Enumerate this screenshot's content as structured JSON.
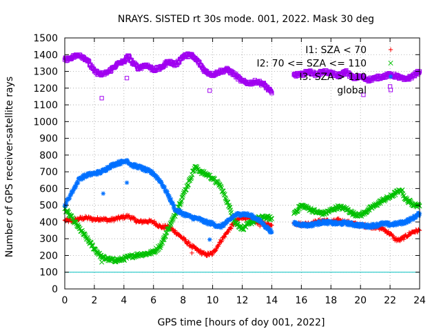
{
  "chart_data": {
    "type": "scatter",
    "title": "NRAYS. SISTED rt 30s mode. 001, 2022. Mask 30 deg",
    "xlabel": "GPS time [hours of doy 001, 2022]",
    "ylabel": "Number of GPS receiver-satellite rays",
    "xlim": [
      0,
      24
    ],
    "ylim": [
      0,
      1500
    ],
    "xticks": [
      0,
      2,
      4,
      6,
      8,
      10,
      12,
      14,
      16,
      18,
      20,
      22,
      24
    ],
    "yticks": [
      0,
      100,
      200,
      300,
      400,
      500,
      600,
      700,
      800,
      900,
      1000,
      1100,
      1200,
      1300,
      1400,
      1500
    ],
    "grid": true,
    "legend_position": "top-right",
    "gap_hours": [
      14.2,
      15.5
    ],
    "series": [
      {
        "name": "I1: SZA < 70",
        "color": "#ff0000",
        "marker": "+",
        "x": [
          0,
          0.5,
          1,
          1.5,
          2,
          2.5,
          3,
          3.5,
          4,
          4.3,
          4.6,
          5,
          5.5,
          6,
          6.5,
          7,
          7.5,
          8,
          8.5,
          9,
          9.5,
          10,
          10.5,
          11,
          11.5,
          12,
          12.5,
          13,
          13.5,
          14,
          15.5,
          16,
          16.5,
          17,
          17.5,
          18,
          18.5,
          19,
          19.5,
          20,
          20.5,
          21,
          21.5,
          22,
          22.3,
          22.6,
          23,
          23.5,
          24
        ],
        "y": [
          410,
          405,
          420,
          425,
          415,
          420,
          410,
          420,
          430,
          435,
          420,
          400,
          405,
          400,
          370,
          370,
          340,
          300,
          260,
          230,
          205,
          210,
          280,
          340,
          400,
          430,
          420,
          400,
          390,
          380,
          395,
          385,
          390,
          400,
          410,
          400,
          410,
          400,
          390,
          380,
          375,
          370,
          360,
          330,
          300,
          290,
          310,
          340,
          350
        ]
      },
      {
        "name": "I2: 70 <= SZA <= 110",
        "color": "#00c000",
        "marker": "x",
        "x": [
          0,
          0.5,
          1,
          1.5,
          2,
          2.5,
          3,
          3.5,
          4,
          4.5,
          5,
          5.5,
          6,
          6.5,
          7,
          7.5,
          8,
          8.5,
          8.8,
          9.2,
          9.7,
          10,
          10.5,
          11,
          11.5,
          12,
          12.5,
          13,
          13.5,
          14,
          15.5,
          16,
          16.5,
          17,
          17.5,
          18,
          18.5,
          19,
          19.5,
          20,
          20.5,
          21,
          21.5,
          22,
          22.5,
          22.8,
          23,
          23.5,
          24
        ],
        "y": [
          480,
          420,
          360,
          300,
          240,
          190,
          175,
          170,
          180,
          195,
          205,
          210,
          220,
          260,
          360,
          450,
          560,
          660,
          730,
          700,
          680,
          660,
          620,
          520,
          400,
          360,
          390,
          420,
          430,
          420,
          450,
          500,
          480,
          460,
          450,
          470,
          490,
          480,
          450,
          440,
          470,
          500,
          530,
          550,
          580,
          590,
          540,
          510,
          495
        ]
      },
      {
        "name": "I3: SZA > 110",
        "color": "#0070ff",
        "marker": "*",
        "x": [
          0,
          0.5,
          1,
          1.5,
          2,
          2.5,
          3,
          3.5,
          4,
          4.2,
          4.5,
          5,
          5.5,
          6,
          6.5,
          7,
          7.5,
          8,
          8.5,
          9,
          9.5,
          10,
          10.5,
          11,
          11.5,
          12,
          12.5,
          13,
          13.5,
          14,
          15.5,
          16,
          16.5,
          17,
          17.5,
          18,
          18.5,
          19,
          19.5,
          20,
          20.5,
          21,
          21.5,
          22,
          22.5,
          23,
          23.5,
          24
        ],
        "y": [
          500,
          580,
          660,
          680,
          690,
          700,
          730,
          750,
          760,
          770,
          740,
          730,
          710,
          690,
          640,
          560,
          470,
          450,
          430,
          420,
          400,
          390,
          370,
          400,
          440,
          450,
          440,
          420,
          380,
          340,
          390,
          385,
          380,
          390,
          400,
          395,
          390,
          395,
          385,
          380,
          375,
          380,
          390,
          385,
          390,
          400,
          420,
          450
        ]
      },
      {
        "name": "global",
        "color": "#a000f0",
        "marker": "square",
        "x": [
          0,
          0.5,
          1,
          1.5,
          2,
          2.5,
          3,
          3.5,
          4,
          4.3,
          4.6,
          5,
          5.5,
          6,
          6.5,
          7,
          7.5,
          8,
          8.5,
          9,
          9.5,
          10,
          10.5,
          11,
          11.5,
          12,
          12.5,
          13,
          13.5,
          14,
          15.5,
          16,
          16.5,
          17,
          17.5,
          18,
          18.5,
          19,
          19.5,
          20,
          20.5,
          21,
          21.5,
          22,
          22.5,
          23,
          23.5,
          24
        ],
        "y": [
          1370,
          1385,
          1400,
          1370,
          1300,
          1280,
          1300,
          1340,
          1360,
          1390,
          1350,
          1320,
          1340,
          1310,
          1320,
          1360,
          1340,
          1390,
          1400,
          1360,
          1300,
          1280,
          1300,
          1310,
          1280,
          1240,
          1230,
          1240,
          1220,
          1170,
          1280,
          1280,
          1300,
          1280,
          1300,
          1290,
          1270,
          1300,
          1260,
          1270,
          1250,
          1260,
          1270,
          1280,
          1270,
          1250,
          1270,
          1300
        ]
      }
    ],
    "outliers": [
      {
        "series": "global",
        "points": [
          [
            2.5,
            1140
          ],
          [
            4.2,
            1260
          ],
          [
            9.8,
            1185
          ],
          [
            20.2,
            1160
          ],
          [
            22.0,
            1210
          ]
        ]
      },
      {
        "series": "I3: SZA > 110",
        "points": [
          [
            2.6,
            570
          ],
          [
            4.2,
            635
          ],
          [
            9.8,
            295
          ]
        ]
      },
      {
        "series": "I2: 70 <= SZA <= 110",
        "points": [
          [
            2.5,
            160
          ]
        ]
      },
      {
        "series": "I1: SZA < 70",
        "points": [
          [
            8.6,
            215
          ],
          [
            13.2,
            375
          ]
        ]
      }
    ],
    "reference_line": {
      "y": 100,
      "color": "#00c0c0"
    }
  }
}
